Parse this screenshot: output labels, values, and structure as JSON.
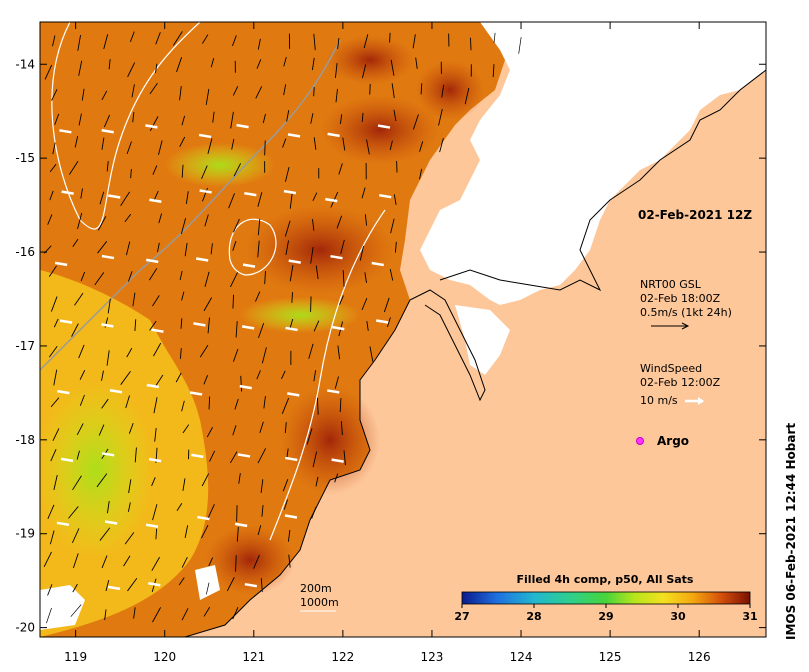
{
  "map": {
    "lon_ticks": [
      "119",
      "120",
      "121",
      "122",
      "123",
      "124",
      "125",
      "126"
    ],
    "lat_ticks": [
      "-14",
      "-15",
      "-16",
      "-17",
      "-18",
      "-19",
      "-20"
    ],
    "lon_range": [
      118.6,
      126.75
    ],
    "lat_range": [
      -20.1,
      -13.55
    ]
  },
  "legend": {
    "date_label": "02-Feb-2021 12Z",
    "current_title": "NRT00 GSL",
    "current_time": "02-Feb 18:00Z",
    "current_scale": "0.5m/s (1kt 24h)",
    "wind_title": "WindSpeed",
    "wind_time": "02-Feb 12:00Z",
    "wind_scale": "10 m/s",
    "argo_label": "Argo",
    "contour_200": "200m",
    "contour_1000": "1000m"
  },
  "colorbar": {
    "title": "Filled 4h comp, p50, All Sats",
    "ticks": [
      "27",
      "28",
      "29",
      "30",
      "31"
    ],
    "range": [
      27,
      31
    ],
    "colors": [
      "#0a1a8c",
      "#1e8be0",
      "#29c9b0",
      "#3ccf4a",
      "#b8e61c",
      "#f4e020",
      "#f5a80f",
      "#e06a08",
      "#b22a05",
      "#7a1003"
    ]
  },
  "credit": "IMOS 06-Feb-2021 12:44 Hobart",
  "colors": {
    "land": "#fdc79a",
    "cloud": "#ffffff",
    "sst_warm": "#e07a10",
    "sst_hot": "#9b1e08",
    "sst_mid": "#f3b81a",
    "sst_cool": "#c8e41c"
  }
}
